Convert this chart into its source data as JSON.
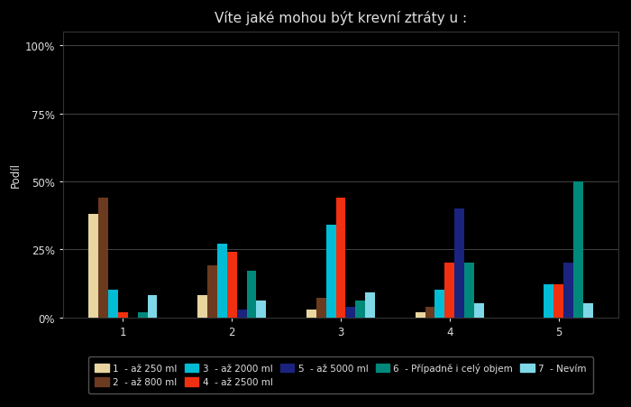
{
  "title": "Víte jaké mohou být krevní ztráty u :",
  "background_color": "#000000",
  "text_color": "#e0e0e0",
  "grid_color": "#444444",
  "ylabel": "Podíl",
  "ylim": [
    0,
    1.05
  ],
  "yticks": [
    0,
    0.25,
    0.5,
    0.75,
    1.0
  ],
  "ytick_labels": [
    "0%",
    "25%",
    "50%",
    "75%",
    "100%"
  ],
  "categories": [
    1,
    2,
    3,
    4,
    5
  ],
  "bar_width": 0.09,
  "xlim": [
    0.45,
    5.55
  ],
  "series": [
    {
      "label": "1  - až 250 ml",
      "color": "#e8d5a0",
      "values": [
        0.38,
        0.08,
        0.03,
        0.02,
        0.0
      ]
    },
    {
      "label": "2  - až 800 ml",
      "color": "#6b3a1f",
      "values": [
        0.44,
        0.19,
        0.07,
        0.04,
        0.0
      ]
    },
    {
      "label": "3  - až 2000 ml",
      "color": "#00bcd4",
      "values": [
        0.1,
        0.27,
        0.34,
        0.1,
        0.12
      ]
    },
    {
      "label": "4  - až 2500 ml",
      "color": "#f03010",
      "values": [
        0.02,
        0.24,
        0.44,
        0.2,
        0.12
      ]
    },
    {
      "label": "5  - až 5000 ml",
      "color": "#1a237e",
      "values": [
        0.0,
        0.03,
        0.04,
        0.4,
        0.2
      ]
    },
    {
      "label": "6  - Případně i celý objem",
      "color": "#00897b",
      "values": [
        0.02,
        0.17,
        0.06,
        0.2,
        0.5
      ]
    },
    {
      "label": "7  - Nevím",
      "color": "#7fd8e8",
      "values": [
        0.08,
        0.06,
        0.09,
        0.05,
        0.05
      ]
    }
  ],
  "legend_ncol": 5,
  "legend_fontsize": 7.5,
  "title_fontsize": 11,
  "axis_fontsize": 8.5
}
